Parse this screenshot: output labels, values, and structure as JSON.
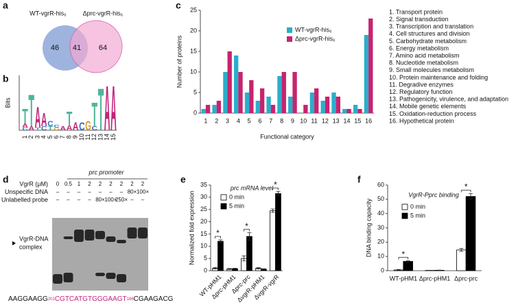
{
  "chart_data": [
    {
      "type": "venn",
      "panel": "a",
      "sets": [
        {
          "name": "WT-vgrR-his₆",
          "color": "#8ea6d9"
        },
        {
          "name": "Δprc-vgrR-his₆",
          "color": "#f2a9d3"
        }
      ],
      "values": [
        46,
        41,
        64
      ]
    },
    {
      "type": "logo",
      "panel": "b",
      "ylabel": "Bits",
      "ylim": [
        0,
        2
      ],
      "categories": [
        "1",
        "2",
        "3",
        "4",
        "5",
        "6",
        "7",
        "8",
        "9",
        "10",
        "11",
        "12",
        "13",
        "14",
        "15"
      ],
      "colors": {
        "A": "#c2257c",
        "T": "#4fb59a",
        "C": "#3a70c0",
        "G": "#e59a2b"
      },
      "stacks": [
        [
          {
            "letter": "C",
            "value": 0.1
          },
          {
            "letter": "A",
            "value": 0.15
          },
          {
            "letter": "T",
            "value": 0.55
          }
        ],
        [
          {
            "letter": "A",
            "value": 0.15
          },
          {
            "letter": "T",
            "value": 1.2
          }
        ],
        [
          {
            "letter": "T",
            "value": 0.1
          },
          {
            "letter": "A",
            "value": 0.8
          }
        ],
        [
          {
            "letter": "C",
            "value": 0.15
          },
          {
            "letter": "A",
            "value": 0.5
          }
        ],
        [
          {
            "letter": "T",
            "value": 0.15
          },
          {
            "letter": "C",
            "value": 0.2
          }
        ],
        [
          {
            "letter": "G",
            "value": 0.1
          },
          {
            "letter": "C",
            "value": 0.1
          }
        ],
        [
          {
            "letter": "A",
            "value": 0.15
          }
        ],
        [
          {
            "letter": "A",
            "value": 0.2
          },
          {
            "letter": "T",
            "value": 0.5
          }
        ],
        [
          {
            "letter": "A",
            "value": 0.3
          }
        ],
        [
          {
            "letter": "C",
            "value": 0.3
          }
        ],
        [
          {
            "letter": "G",
            "value": 0.35
          }
        ],
        [
          {
            "letter": "C",
            "value": 0.15
          },
          {
            "letter": "T",
            "value": 0.9
          }
        ],
        [
          {
            "letter": "T",
            "value": 1.6
          }
        ],
        [
          {
            "letter": "A",
            "value": 1.7
          }
        ],
        [
          {
            "letter": "A",
            "value": 1.7
          }
        ]
      ]
    },
    {
      "type": "bar",
      "panel": "c",
      "ylabel": "Number of proteins",
      "xlabel": "Functional category",
      "categories": [
        "1",
        "2",
        "3",
        "4",
        "5",
        "6",
        "7",
        "8",
        "9",
        "10",
        "11",
        "12",
        "13",
        "14",
        "15",
        "16"
      ],
      "series": [
        {
          "name": "WT-vgrR-his₆",
          "color": "#2aaecb",
          "values": [
            1,
            2,
            10,
            14,
            5,
            3,
            4,
            9,
            4,
            0,
            5,
            3,
            5,
            1,
            2,
            19
          ]
        },
        {
          "name": "Δprc-vgrR-his₆",
          "color": "#c8236e",
          "values": [
            2,
            3,
            15,
            10,
            8,
            6,
            2,
            10,
            10,
            2,
            6,
            4,
            4,
            1,
            1,
            23
          ]
        }
      ],
      "ylim": [
        0,
        25
      ],
      "yticks": [
        0,
        5,
        10,
        15,
        20,
        25
      ],
      "category_names": [
        "1. Transport protein",
        "2. Signal transduction",
        "3. Transcription and translation",
        "4. Cell structures and division",
        "5. Carbohydrate metabolism",
        "6. Energy metabolism",
        "7. Amino acid metabolism",
        "8. Nucleotide metabolism",
        "9. Small molecules metabolism",
        "10. Protein maintenance and folding",
        "11. Degradive enzymes",
        "12. Regulatory function",
        "13. Pathogenicity, virulence, and adaptation",
        "14. Mobile genetic elements",
        "15. Oxidation-reduction process",
        "16. Hypothetical protein"
      ]
    },
    {
      "type": "bar",
      "panel": "e",
      "title": "prc mRNA level",
      "ylabel": "Normalized fold expression",
      "categories": [
        "WT-pHM1",
        "Δprc-pHM1",
        "Δprc-prc",
        "ΔvgrR-pHM1",
        "ΔvgrR-vgrR"
      ],
      "series": [
        {
          "name": "0 min",
          "color": "#ffffff",
          "values": [
            1,
            0.7,
            5,
            1,
            24.5
          ],
          "errors": [
            0.3,
            0.2,
            1,
            0.3,
            0.7
          ]
        },
        {
          "name": "5 min",
          "color": "#000000",
          "values": [
            12,
            0.8,
            14,
            0.6,
            31.5
          ],
          "errors": [
            0.6,
            0.2,
            1.5,
            0.2,
            0.9
          ]
        }
      ],
      "significance": [
        "*",
        null,
        "*",
        null,
        "*"
      ],
      "ylim": [
        0,
        35
      ],
      "yticks": [
        0,
        5,
        10,
        15,
        20,
        25,
        30,
        35
      ]
    },
    {
      "type": "bar",
      "panel": "f",
      "title": "VgrR-Pprc binding",
      "ylabel": "DNA binding capacity",
      "categories": [
        "WT-pHM1",
        "Δprc-pHM1",
        "Δprc-prc"
      ],
      "series": [
        {
          "name": "0 min",
          "color": "#ffffff",
          "values": [
            0.5,
            0.2,
            14.5
          ],
          "errors": [
            0.3,
            0.1,
            1
          ]
        },
        {
          "name": "5 min",
          "color": "#000000",
          "values": [
            6.5,
            0.3,
            52
          ],
          "errors": [
            0.4,
            0.1,
            2
          ]
        }
      ],
      "significance": [
        "*",
        null,
        "*"
      ],
      "ylim": [
        0,
        60
      ],
      "yticks": [
        0,
        10,
        20,
        30,
        40,
        50,
        60
      ]
    }
  ],
  "gel": {
    "panel": "d",
    "title": "prc promoter",
    "rows": [
      {
        "label": "VgrR (μM)",
        "cells": [
          "0",
          "0.5",
          "1",
          "2",
          "2",
          "2",
          "2",
          "2",
          "2"
        ]
      },
      {
        "label": "Unspecific DNA",
        "cells": [
          "–",
          "–",
          "–",
          "–",
          "–",
          "–",
          "–",
          "80×",
          "100×"
        ]
      },
      {
        "label": "Unlabelled probe",
        "cells": [
          "–",
          "–",
          "–",
          "–",
          "80×",
          "100×",
          "250×",
          "–",
          "–"
        ]
      }
    ],
    "complex_label": [
      "VgrR-DNA",
      "complex"
    ],
    "sequence": [
      "AAGGAAGG",
      "201",
      "CGTCATGTGGGAAGT",
      "186",
      "CGAAGACG"
    ]
  }
}
